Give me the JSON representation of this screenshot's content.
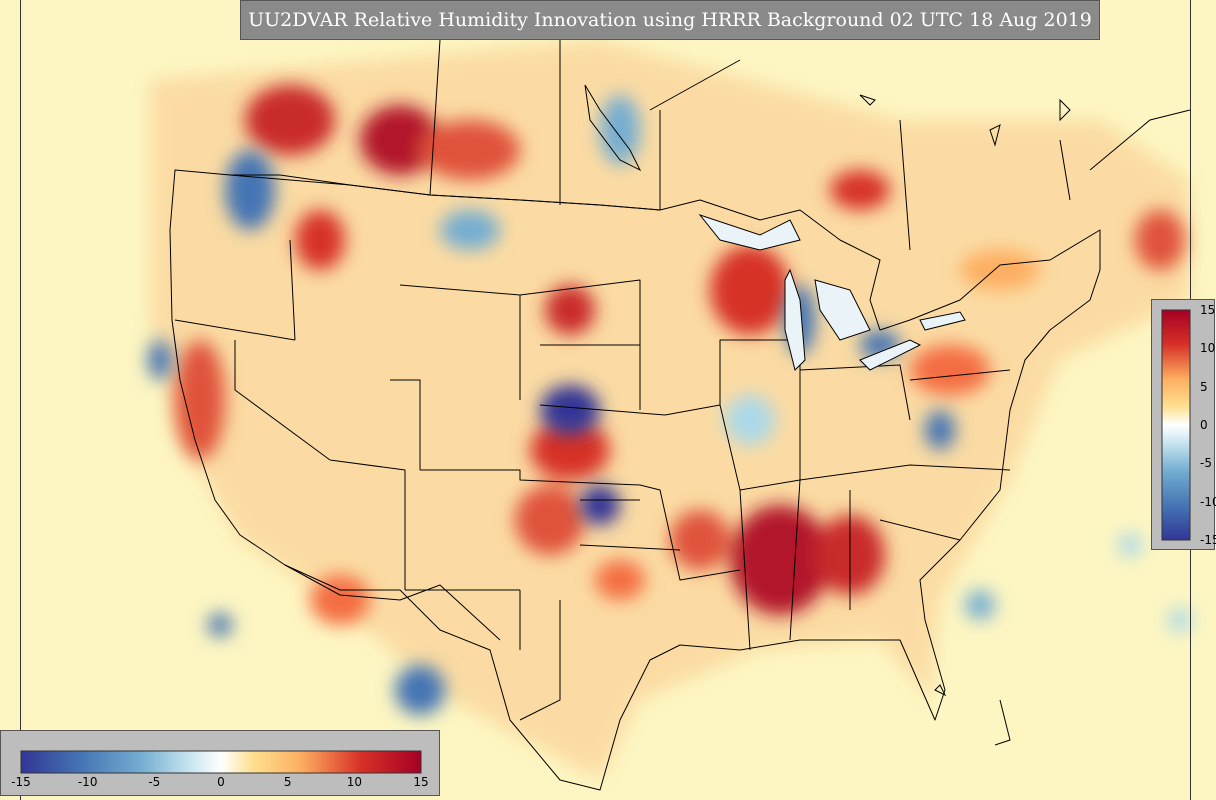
{
  "title": "UU2DVAR Relative Humidity Innovation using HRRR Background 02 UTC 18 Aug 2019",
  "colorbar": {
    "ticks": [
      "-15",
      "-10",
      "-5",
      "0",
      "5",
      "10",
      "15"
    ],
    "tick_values": [
      -15,
      -10,
      -5,
      0,
      5,
      10,
      15
    ],
    "range": [
      -15,
      15
    ],
    "colors": [
      "#313695",
      "#4575b4",
      "#74add1",
      "#abd9e9",
      "#e0f3f8",
      "#ffffbf",
      "#fee090",
      "#fdae61",
      "#f46d43",
      "#d73027",
      "#a50026"
    ]
  },
  "map_colors": {
    "background": "#fdf6c2",
    "dry": "#b2182b",
    "moist": "#2c5aa0",
    "borders": "#000000"
  }
}
